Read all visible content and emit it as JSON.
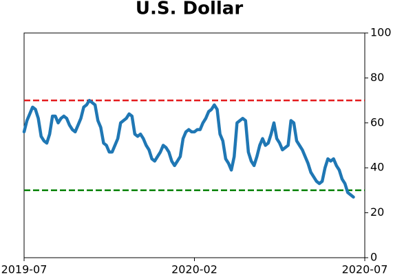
{
  "chart_data": {
    "type": "line",
    "title": "U.S. Dollar",
    "x": [
      0,
      0.1,
      0.2,
      0.3,
      0.4,
      0.5,
      0.6,
      0.7,
      0.8,
      0.9,
      1,
      1.1,
      1.2,
      1.3,
      1.4,
      1.5,
      1.6,
      1.7,
      1.8,
      1.9,
      2,
      2.1,
      2.2,
      2.3,
      2.4,
      2.5,
      2.6,
      2.7,
      2.8,
      2.9,
      3,
      3.1,
      3.2,
      3.3,
      3.4,
      3.5,
      3.6,
      3.7,
      3.8,
      3.9,
      4,
      4.1,
      4.2,
      4.3,
      4.4,
      4.5,
      4.6,
      4.7,
      4.8,
      4.9,
      5,
      5.1,
      5.2,
      5.3,
      5.4,
      5.5,
      5.6,
      5.7,
      5.8,
      5.9,
      6,
      6.1,
      6.2,
      6.3,
      6.4,
      6.5,
      6.6,
      6.7,
      6.8,
      6.9,
      7,
      7.1,
      7.2,
      7.3,
      7.4,
      7.5,
      7.6,
      7.7,
      7.8,
      7.9,
      8,
      8.1,
      8.2,
      8.3,
      8.4,
      8.5,
      8.6,
      8.7,
      8.8,
      8.9,
      9,
      9.1,
      9.2,
      9.3,
      9.4,
      9.5,
      9.6,
      9.7,
      9.8,
      9.9,
      10,
      10.1,
      10.2,
      10.3,
      10.4,
      10.5,
      10.6,
      10.7,
      10.8,
      10.9,
      11,
      11.1,
      11.2,
      11.3,
      11.4,
      11.5,
      11.6
    ],
    "series": [
      {
        "color": "#1f77b4",
        "values": [
          56,
          61,
          64,
          67,
          66,
          62,
          54,
          52,
          51,
          55,
          63,
          63,
          60,
          62,
          63,
          62,
          59,
          57,
          56,
          59,
          62,
          67,
          68,
          70,
          69,
          68,
          61,
          58,
          51,
          50,
          47,
          47,
          50,
          53,
          60,
          61,
          62,
          64,
          63,
          55,
          54,
          55,
          53,
          50,
          48,
          44,
          43,
          45,
          47,
          50,
          49,
          47,
          43,
          41,
          43,
          45,
          53,
          56,
          57,
          56,
          56,
          57,
          57,
          60,
          62,
          65,
          66,
          68,
          66,
          55,
          52,
          44,
          42,
          39,
          45,
          60,
          61,
          62,
          61,
          47,
          43,
          41,
          45,
          50,
          53,
          50,
          51,
          55,
          60,
          53,
          51,
          48,
          49,
          50,
          61,
          60,
          52,
          50,
          48,
          45,
          42,
          38,
          36,
          34,
          33,
          34,
          40,
          44,
          43,
          44,
          41,
          39,
          35,
          33,
          29,
          28,
          27
        ]
      }
    ],
    "hlines": [
      {
        "value": 70,
        "color": "#e41a1c"
      },
      {
        "value": 30,
        "color": "#008000"
      }
    ],
    "xlim": [
      0,
      12
    ],
    "xticks": [
      {
        "value": 0,
        "label": "2019-07"
      },
      {
        "value": 6,
        "label": "2020-02"
      },
      {
        "value": 12,
        "label": "2020-07"
      }
    ],
    "ylim": [
      0,
      100
    ],
    "yticks": [
      0,
      20,
      40,
      60,
      80,
      100
    ],
    "y_axis_side": "right",
    "grid": false
  }
}
